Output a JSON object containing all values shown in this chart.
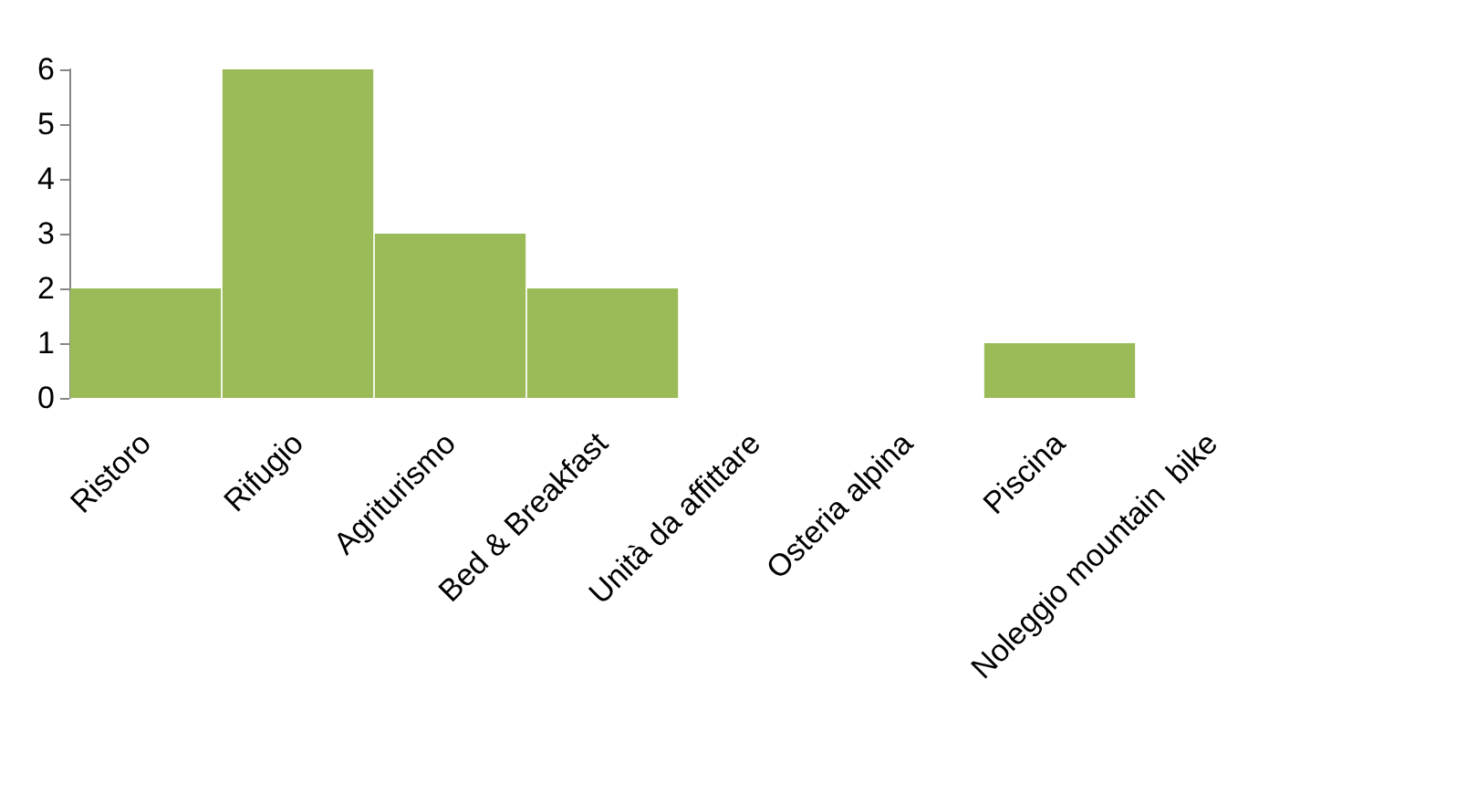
{
  "chart_data": {
    "type": "bar",
    "categories": [
      "Ristoro",
      "Rifugio",
      "Agriturismo",
      "Bed & Breakfast",
      "Unità da affittare",
      "Osteria alpina",
      "Piscina",
      "Noleggio mountain  bike"
    ],
    "values": [
      2,
      6,
      3,
      2,
      0,
      0,
      1,
      0
    ],
    "color": "#9bbb59",
    "ylim": [
      0,
      6
    ],
    "yticks": [
      0,
      1,
      2,
      3,
      4,
      5,
      6
    ],
    "grid": false
  }
}
